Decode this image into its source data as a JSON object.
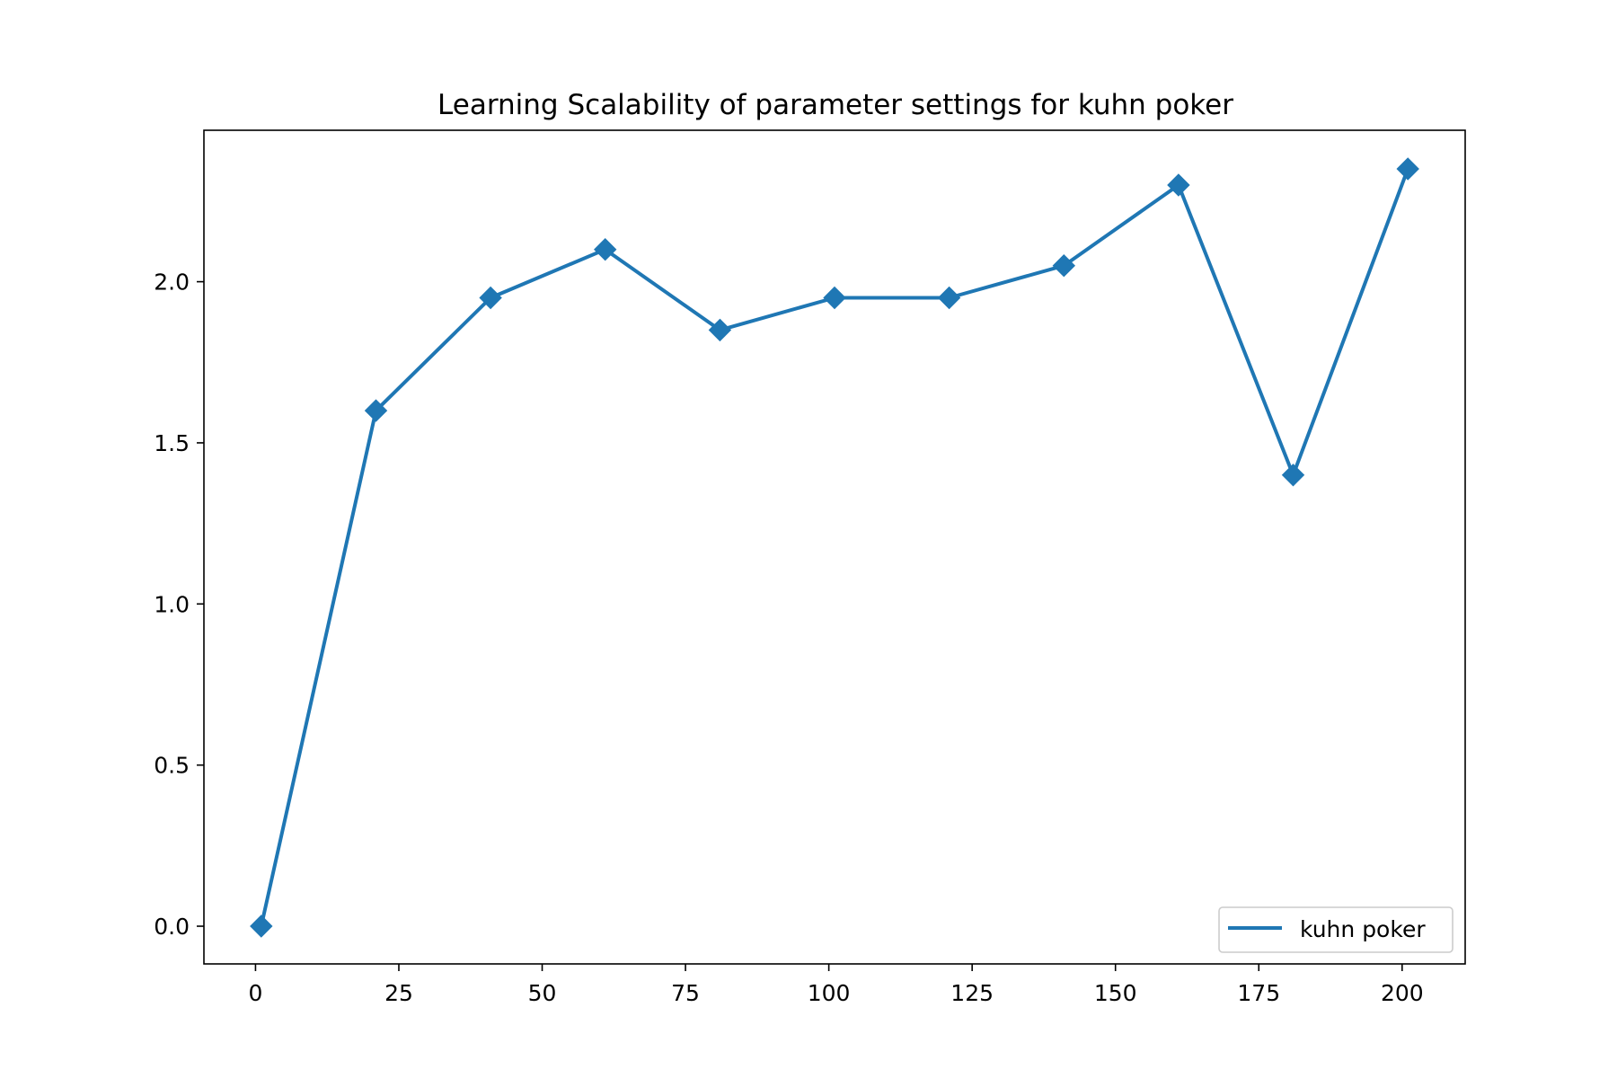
{
  "chart_data": {
    "type": "line",
    "title": "Learning Scalability of parameter settings for kuhn poker",
    "xlabel": "",
    "ylabel": "",
    "xlim": [
      -9,
      211
    ],
    "ylim": [
      -0.117,
      2.47
    ],
    "x_ticks": [
      "0",
      "25",
      "50",
      "75",
      "100",
      "125",
      "150",
      "175",
      "200"
    ],
    "x_tick_values": [
      0,
      25,
      50,
      75,
      100,
      125,
      150,
      175,
      200
    ],
    "y_ticks": [
      "0.0",
      "0.5",
      "1.0",
      "1.5",
      "2.0"
    ],
    "y_tick_values": [
      0.0,
      0.5,
      1.0,
      1.5,
      2.0
    ],
    "grid": false,
    "legend_position": "lower right",
    "series": [
      {
        "name": "kuhn poker",
        "color": "#1f77b4",
        "marker": "diamond",
        "x": [
          1,
          21,
          41,
          61,
          81,
          101,
          121,
          141,
          161,
          181,
          201
        ],
        "y": [
          0.0,
          1.6,
          1.95,
          2.1,
          1.85,
          1.95,
          1.95,
          2.05,
          2.3,
          1.4,
          2.35
        ]
      }
    ]
  }
}
